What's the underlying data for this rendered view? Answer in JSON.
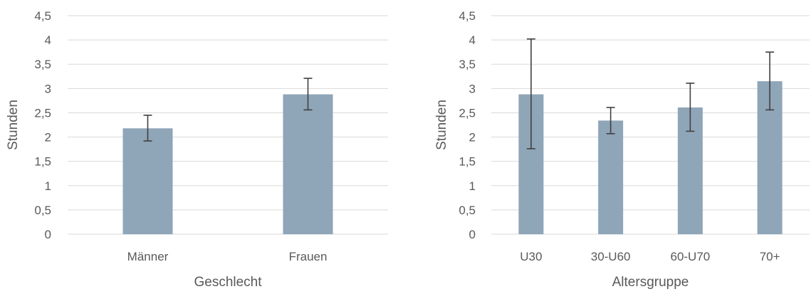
{
  "chart_data": [
    {
      "type": "bar",
      "xlabel": "Geschlecht",
      "ylabel": "Stunden",
      "ylim": [
        0,
        4.5
      ],
      "yticks": [
        "0",
        "0,5",
        "1",
        "1,5",
        "2",
        "2,5",
        "3",
        "3,5",
        "4",
        "4,5"
      ],
      "categories": [
        "Männer",
        "Frauen"
      ],
      "values": [
        2.18,
        2.88
      ],
      "error_low": [
        1.92,
        2.56
      ],
      "error_high": [
        2.45,
        3.21
      ],
      "grid": true,
      "bar_color": "#8fa5b8"
    },
    {
      "type": "bar",
      "xlabel": "Altersgruppe",
      "ylabel": "Stunden",
      "ylim": [
        0,
        4.5
      ],
      "yticks": [
        "0",
        "0,5",
        "1",
        "1,5",
        "2",
        "2,5",
        "3",
        "3,5",
        "4",
        "4,5"
      ],
      "categories": [
        "U30",
        "30-U60",
        "60-U70",
        "70+"
      ],
      "values": [
        2.88,
        2.34,
        2.61,
        3.15
      ],
      "error_low": [
        1.76,
        2.07,
        2.12,
        2.56
      ],
      "error_high": [
        4.02,
        2.61,
        3.11,
        3.75
      ],
      "grid": true,
      "bar_color": "#8fa5b8"
    }
  ]
}
